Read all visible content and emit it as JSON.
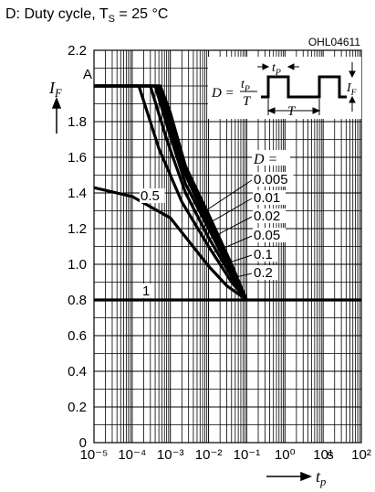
{
  "chart_data": {
    "type": "line",
    "title": "D: Duty cycle, T",
    "title_sub": "S",
    "title_end": " = 25 °C",
    "code": "OHL04611",
    "ylabel": "I",
    "ylabel_sub": "F",
    "y_unit": "A",
    "xlabel": "t",
    "xlabel_sub": "p",
    "x_unit": "s",
    "legend_title": "D =",
    "log_x": true,
    "grid": true,
    "color": "#000000",
    "xlim": [
      1e-05,
      100
    ],
    "xticks": [
      {
        "value": 1e-05,
        "label": "10⁻⁵"
      },
      {
        "value": 0.0001,
        "label": "10⁻⁴"
      },
      {
        "value": 0.001,
        "label": "10⁻³"
      },
      {
        "value": 0.01,
        "label": "10⁻²"
      },
      {
        "value": 0.1,
        "label": "10⁻¹"
      },
      {
        "value": 1,
        "label": "10⁰"
      },
      {
        "value": 10,
        "label": "10¹"
      },
      {
        "value": 100,
        "label": "10²"
      }
    ],
    "ylim": [
      0,
      2.2
    ],
    "yticks": [
      0,
      0.2,
      0.4,
      0.6,
      0.8,
      {
        "value": 1,
        "label": "1.0"
      },
      1.2,
      1.4,
      1.6,
      1.8,
      2.2
    ],
    "inset": {
      "d": "D =",
      "num": "t",
      "num_sub": "P",
      "den": "T",
      "tp": "t",
      "tp_sub": "P",
      "period": "T",
      "if": "I",
      "if_sub": "F"
    },
    "series": [
      {
        "name": "1",
        "x": [
          1e-05,
          100
        ],
        "values": [
          0.8,
          0.8
        ]
      },
      {
        "name": "0.5",
        "x": [
          1e-05,
          0.0001,
          0.001,
          0.01,
          0.03,
          0.1
        ],
        "values": [
          1.43,
          1.38,
          1.26,
          0.99,
          0.88,
          0.8
        ]
      },
      {
        "name": "0.2",
        "x": [
          1e-05,
          0.00015,
          0.0005,
          0.002,
          0.01,
          0.04,
          0.1
        ],
        "values": [
          2.0,
          2.0,
          1.65,
          1.35,
          1.1,
          0.9,
          0.8
        ]
      },
      {
        "name": "0.1",
        "x": [
          1e-05,
          0.0003,
          0.0008,
          0.0025,
          0.01,
          0.04,
          0.1
        ],
        "values": [
          2.0,
          2.0,
          1.7,
          1.4,
          1.15,
          0.93,
          0.8
        ]
      },
      {
        "name": "0.05",
        "x": [
          1e-05,
          0.0004,
          0.0009,
          0.0025,
          0.01,
          0.04,
          0.1
        ],
        "values": [
          2.0,
          2.0,
          1.75,
          1.45,
          1.2,
          0.95,
          0.8
        ]
      },
      {
        "name": "0.02",
        "x": [
          1e-05,
          0.00045,
          0.0009,
          0.0025,
          0.01,
          0.04,
          0.1
        ],
        "values": [
          2.0,
          2.0,
          1.8,
          1.5,
          1.22,
          0.97,
          0.8
        ]
      },
      {
        "name": "0.01",
        "x": [
          1e-05,
          0.0005,
          0.001,
          0.0025,
          0.01,
          0.04,
          0.1
        ],
        "values": [
          2.0,
          2.0,
          1.82,
          1.52,
          1.25,
          0.98,
          0.8
        ]
      },
      {
        "name": "0.005",
        "x": [
          1e-05,
          0.00055,
          0.001,
          0.0025,
          0.01,
          0.04,
          0.1
        ],
        "values": [
          2.0,
          2.0,
          1.85,
          1.55,
          1.28,
          1.0,
          0.8
        ]
      }
    ]
  }
}
